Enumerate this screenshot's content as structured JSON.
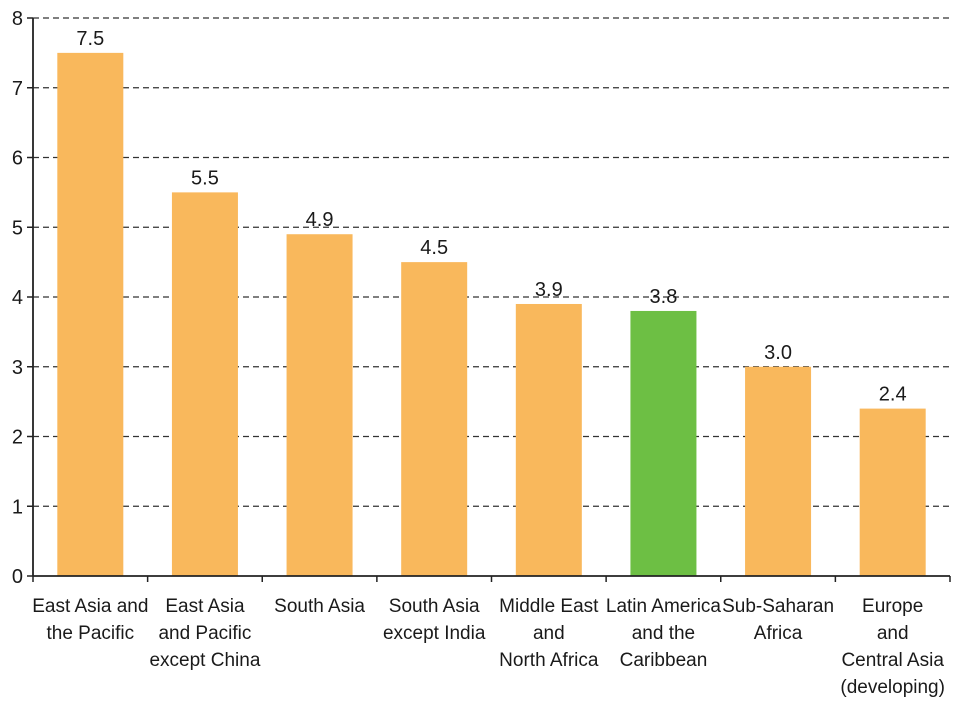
{
  "chart_data": {
    "type": "bar",
    "categories": [
      [
        "East Asia and",
        "the Pacific"
      ],
      [
        "East Asia",
        "and Pacific",
        "except China"
      ],
      [
        "South Asia"
      ],
      [
        "South Asia",
        "except India"
      ],
      [
        "Middle East",
        "and",
        "North Africa"
      ],
      [
        "Latin America",
        "and the",
        "Caribbean"
      ],
      [
        "Sub-Saharan",
        "Africa"
      ],
      [
        "Europe",
        "and",
        "Central Asia",
        "(developing)"
      ]
    ],
    "values": [
      7.5,
      5.5,
      4.9,
      4.5,
      3.9,
      3.8,
      3.0,
      2.4
    ],
    "value_labels": [
      "7.5",
      "5.5",
      "4.9",
      "4.5",
      "3.9",
      "3.8",
      "3.0",
      "2.4"
    ],
    "bar_colors": [
      "#F9B85C",
      "#F9B85C",
      "#F9B85C",
      "#F9B85C",
      "#F9B85C",
      "#6DBF44",
      "#F9B85C",
      "#F9B85C"
    ],
    "ylim": [
      0,
      8
    ],
    "yticks": [
      0,
      1,
      2,
      3,
      4,
      5,
      6,
      7,
      8
    ],
    "grid": true,
    "grid_style": "dashed",
    "title": "",
    "xlabel": "",
    "ylabel": ""
  }
}
